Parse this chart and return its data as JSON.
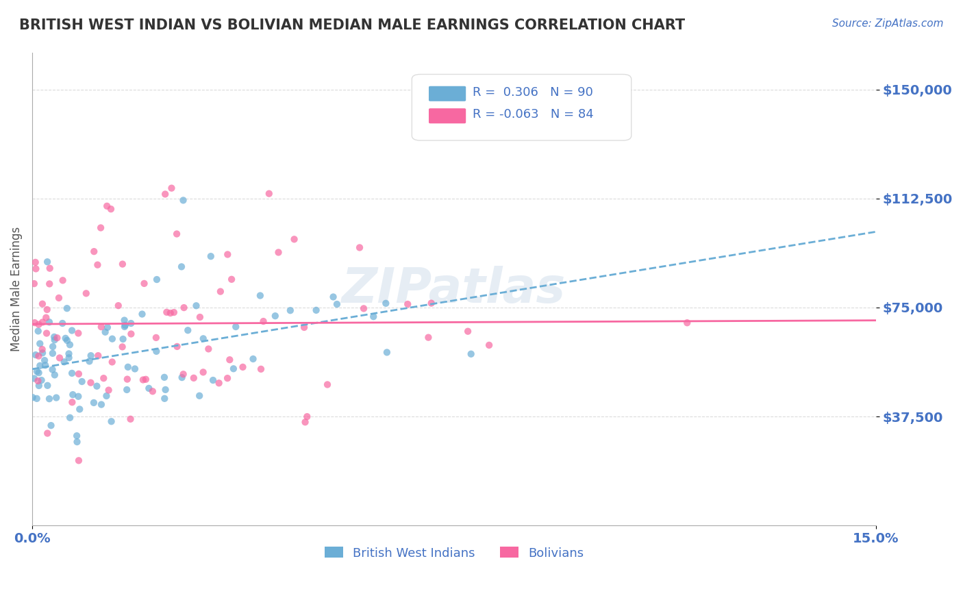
{
  "title": "BRITISH WEST INDIAN VS BOLIVIAN MEDIAN MALE EARNINGS CORRELATION CHART",
  "source": "Source: ZipAtlas.com",
  "ylabel": "Median Male Earnings",
  "xlabel": "",
  "xlim": [
    0.0,
    0.15
  ],
  "ylim": [
    0,
    162500
  ],
  "yticks": [
    37500,
    75000,
    112500,
    150000
  ],
  "ytick_labels": [
    "$37,500",
    "$75,000",
    "$112,500",
    "$150,000"
  ],
  "xtick_labels": [
    "0.0%",
    "15.0%"
  ],
  "blue_color": "#6baed6",
  "pink_color": "#f768a1",
  "blue_R": 0.306,
  "blue_N": 90,
  "pink_R": -0.063,
  "pink_N": 84,
  "bg_color": "#ffffff",
  "grid_color": "#cccccc",
  "axis_label_color": "#4472c4",
  "title_color": "#333333",
  "watermark": "ZIPatlas",
  "legend_labels": [
    "British West Indians",
    "Bolivians"
  ]
}
